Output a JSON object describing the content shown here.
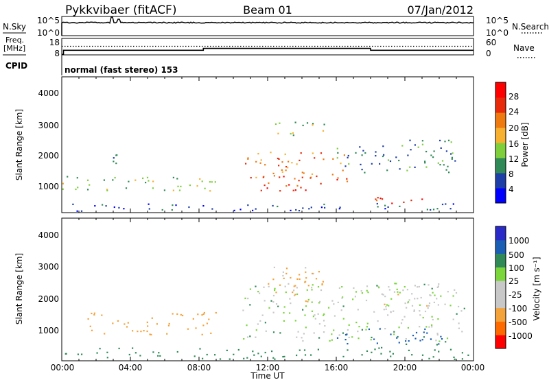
{
  "header": {
    "station": "Pykkvibaer (fitACF)",
    "beam": "Beam 01",
    "date": "07/Jan/2012"
  },
  "sky_panel": {
    "left_label": "N.Sky",
    "right_label": "N.Search",
    "left_ticks": [
      "10^5",
      "10^0"
    ],
    "right_ticks": [
      "10^5",
      "10^0"
    ]
  },
  "freq_panel": {
    "left_label_1": "Freq.",
    "left_label_2": "[MHz]",
    "right_label": "Nave",
    "left_ticks": [
      "18",
      "8"
    ],
    "right_ticks": [
      "60",
      "0"
    ]
  },
  "cpid": {
    "label": "CPID",
    "text": "normal (fast stereo) 153"
  },
  "colors": {
    "power": [
      "#0000ff",
      "#1e3fa8",
      "#2f8a57",
      "#7fcf3c",
      "#f7b030",
      "#ef7a10",
      "#e82a0a",
      "#ff0000"
    ],
    "velocity": [
      "#ff0000",
      "#ff6a00",
      "#f4a23a",
      "#c8c8c8",
      "#c8c8c8",
      "#7ad63a",
      "#2f8a57",
      "#1b5fb4",
      "#2a2ac8"
    ]
  },
  "power_colorbar": {
    "label": "Power [dB]",
    "ticks": [
      "28",
      "24",
      "20",
      "16",
      "12",
      "8",
      "4"
    ]
  },
  "velocity_colorbar": {
    "label": "Velocity [m s⁻¹]",
    "ticks": [
      "1000",
      "500",
      "100",
      "25",
      "-25",
      "-100",
      "-500",
      "-1000"
    ]
  },
  "chart_data": [
    {
      "type": "heatmap",
      "panel": "power",
      "ylabel": "Slant Range [km]",
      "ylim": [
        180,
        4600
      ],
      "yticks": [
        "4000",
        "3000",
        "2000",
        "1000"
      ],
      "xlim_hours": [
        0,
        24
      ],
      "xticks": [
        "00:00",
        "04:00",
        "08:00",
        "12:00",
        "16:00",
        "20:00",
        "00:00"
      ],
      "xlabel": "Time UT",
      "colorscale_db": [
        0,
        32
      ],
      "features": [
        {
          "t0": 0.0,
          "t1": 24.0,
          "r0": 250,
          "r1": 500,
          "value": 6
        },
        {
          "t0": 0.0,
          "t1": 9.3,
          "r0": 900,
          "r1": 1400,
          "value": 14
        },
        {
          "t0": 2.8,
          "t1": 3.6,
          "r0": 1500,
          "r1": 2200,
          "value": 10
        },
        {
          "t0": 10.6,
          "t1": 16.5,
          "r0": 1300,
          "r1": 2200,
          "value": 22
        },
        {
          "t0": 11.2,
          "t1": 16.8,
          "r0": 900,
          "r1": 1400,
          "value": 26
        },
        {
          "t0": 16.0,
          "t1": 23.0,
          "r0": 1500,
          "r1": 2600,
          "value": 9
        },
        {
          "t0": 17.6,
          "t1": 22.4,
          "r0": 480,
          "r1": 700,
          "value": 27
        },
        {
          "t0": 12.4,
          "t1": 15.6,
          "r0": 2700,
          "r1": 3200,
          "value": 14
        }
      ]
    },
    {
      "type": "heatmap",
      "panel": "velocity",
      "ylabel": "Slant Range [km]",
      "ylim": [
        180,
        4600
      ],
      "yticks": [
        "4000",
        "3000",
        "2000",
        "1000"
      ],
      "xlim_hours": [
        0,
        24
      ],
      "xticks": [
        "00:00",
        "04:00",
        "08:00",
        "12:00",
        "16:00",
        "20:00",
        "00:00"
      ],
      "xlabel": "Time UT",
      "features": [
        {
          "t0": 0.0,
          "t1": 24.0,
          "r0": 250,
          "r1": 600,
          "value": 60
        },
        {
          "t0": 1.5,
          "t1": 9.0,
          "r0": 1000,
          "r1": 1700,
          "value": -150
        },
        {
          "t0": 10.5,
          "t1": 23.5,
          "r0": 800,
          "r1": 2600,
          "value": 0
        },
        {
          "t0": 12.0,
          "t1": 16.0,
          "r0": 2000,
          "r1": 3100,
          "value": -120
        },
        {
          "t0": 16.0,
          "t1": 22.5,
          "r0": 600,
          "r1": 1200,
          "value": 120
        },
        {
          "t0": 18.0,
          "t1": 22.0,
          "r0": 1700,
          "r1": 2600,
          "value": -80
        }
      ]
    },
    {
      "type": "line",
      "panel": "frequency",
      "x": [
        0.0,
        0.1,
        0.1,
        8.25,
        8.25,
        18.0,
        18.0,
        24.0
      ],
      "y_mhz": [
        8.3,
        8.3,
        10.8,
        10.8,
        11.9,
        11.9,
        10.8,
        10.8
      ],
      "nave_level": 13.2
    }
  ]
}
